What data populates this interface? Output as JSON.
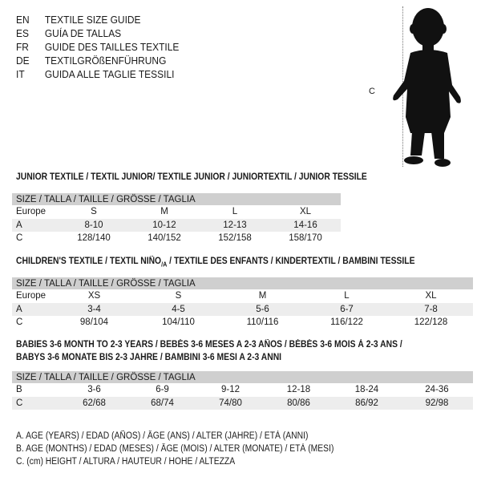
{
  "languages": [
    {
      "code": "EN",
      "text": "TEXTILE SIZE GUIDE"
    },
    {
      "code": "ES",
      "text": "GUÍA DE TALLAS"
    },
    {
      "code": "FR",
      "text": "GUIDE DES TAILLES TEXTILE"
    },
    {
      "code": "DE",
      "text": "TEXTILGRÖßENFÜHRUNG"
    },
    {
      "code": "IT",
      "text": "GUIDA ALLE TAGLIE TESSILI"
    }
  ],
  "figure": {
    "label": "C",
    "icon": "toddler-silhouette"
  },
  "junior": {
    "title": "JUNIOR TEXTILE / TEXTIL JUNIOR/ TEXTILE JUNIOR / JUNIORTEXTIL / JUNIOR TESSILE",
    "header": "SIZE / TALLA / TAILLE / GRÖSSE / TAGLIA",
    "rows": [
      {
        "label": "Europe",
        "values": [
          "S",
          "M",
          "L",
          "XL"
        ]
      },
      {
        "label": "A",
        "values": [
          "8-10",
          "10-12",
          "12-13",
          "14-16"
        ]
      },
      {
        "label": "C",
        "values": [
          "128/140",
          "140/152",
          "152/158",
          "158/170"
        ]
      }
    ]
  },
  "children": {
    "title_pre": "CHILDREN'S TEXTILE / TEXTIL NIÑO",
    "title_sub": "/A",
    "title_post": " / TEXTILE DES ENFANTS / KINDERTEXTIL / BAMBINI TESSILE",
    "header": "SIZE / TALLA / TAILLE / GRÖSSE / TAGLIA",
    "rows": [
      {
        "label": "Europe",
        "values": [
          "XS",
          "S",
          "M",
          "L",
          "XL"
        ]
      },
      {
        "label": "A",
        "values": [
          "3-4",
          "4-5",
          "5-6",
          "6-7",
          "7-8"
        ]
      },
      {
        "label": "C",
        "values": [
          "98/104",
          "104/110",
          "110/116",
          "116/122",
          "122/128"
        ]
      }
    ]
  },
  "babies": {
    "title_line1": "BABIES 3-6 MONTH TO 2-3 YEARS / BEBÉS 3-6 MESES A 2-3 AÑOS / BÉBÉS 3-6 MOIS À 2-3 ANS /",
    "title_line2": "BABYS 3-6 MONATE BIS 2-3 JAHRE / BAMBINI 3-6 MESI A 2-3 ANNI",
    "header": "SIZE / TALLA / TAILLE / GRÖSSE / TAGLIA",
    "rows": [
      {
        "label": "B",
        "values": [
          "3-6",
          "6-9",
          "9-12",
          "12-18",
          "18-24",
          "24-36"
        ]
      },
      {
        "label": "C",
        "values": [
          "62/68",
          "68/74",
          "74/80",
          "80/86",
          "86/92",
          "92/98"
        ]
      }
    ]
  },
  "legend": [
    "A. AGE (YEARS) / EDAD (AÑOS) / ÂGE (ANS) / ALTER (JAHRE) / ETÀ (ANNI)",
    "B. AGE (MONTHS) / EDAD (MESES) / ÂGE (MOIS) / ALTER (MONATE) / ETÀ (MESI)",
    "C. (cm) HEIGHT / ALTURA / HAUTEUR / HÖHE / ALTEZZA"
  ]
}
